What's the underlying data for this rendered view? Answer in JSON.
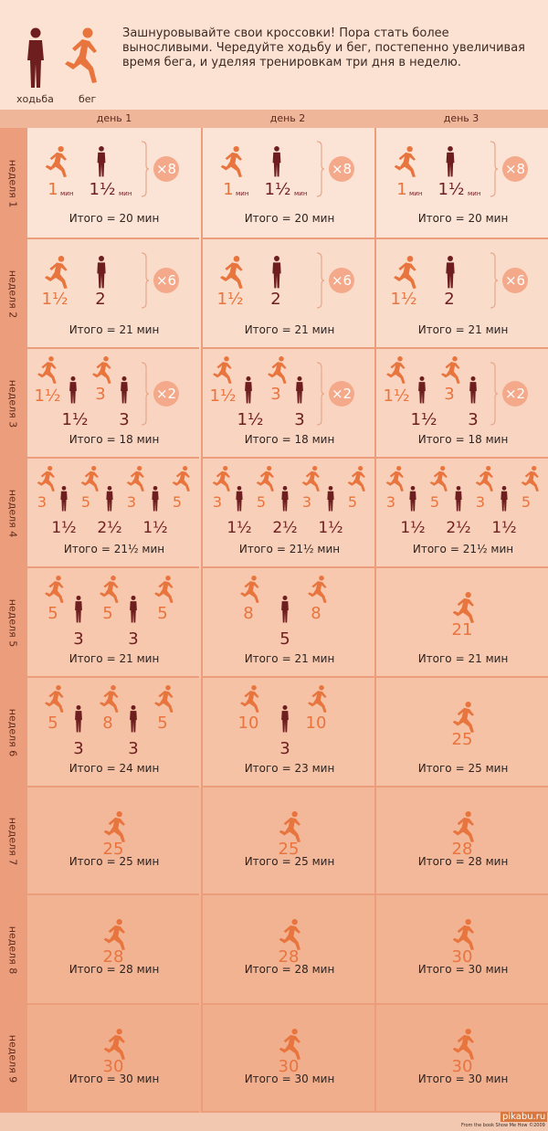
{
  "header": {
    "walk_label": "ходьба",
    "run_label": "бег",
    "intro": "Зашнуровывайте свои кроссовки! Пора стать более выносливыми. Чередуйте ходьбу и бег, постепенно увеличивая время бега, и уделяя тренировкам три дня в неделю."
  },
  "days": [
    "день 1",
    "день 2",
    "день 3"
  ],
  "total_prefix": "Итого",
  "colors": {
    "run": "#e8743e",
    "walk": "#6e1e1e",
    "accent_bg": "#f3a98a"
  },
  "weeks": [
    {
      "label": "неделя 1",
      "cells": [
        {
          "type": "w1",
          "run": "1",
          "walk": "1½",
          "unit": "мин",
          "reps": "×8",
          "total": "= 20 мин"
        },
        {
          "type": "w1",
          "run": "1",
          "walk": "1½",
          "unit": "мин",
          "reps": "×8",
          "total": "= 20 мин"
        },
        {
          "type": "w1",
          "run": "1",
          "walk": "1½",
          "unit": "мин",
          "reps": "×8",
          "total": "= 20 мин"
        }
      ]
    },
    {
      "label": "неделя 2",
      "cells": [
        {
          "type": "w2",
          "run": "1½",
          "walk": "2",
          "reps": "×6",
          "total": "= 21 мин"
        },
        {
          "type": "w2",
          "run": "1½",
          "walk": "2",
          "reps": "×6",
          "total": "= 21 мин"
        },
        {
          "type": "w2",
          "run": "1½",
          "walk": "2",
          "reps": "×6",
          "total": "= 21 мин"
        }
      ]
    },
    {
      "label": "неделя 3",
      "cells": [
        {
          "type": "w3",
          "vals": [
            "1½",
            "1½",
            "3",
            "3"
          ],
          "reps": "×2",
          "total": "= 18 мин"
        },
        {
          "type": "w3",
          "vals": [
            "1½",
            "1½",
            "3",
            "3"
          ],
          "reps": "×2",
          "total": "= 18 мин"
        },
        {
          "type": "w3",
          "vals": [
            "1½",
            "1½",
            "3",
            "3"
          ],
          "reps": "×2",
          "total": "= 18 мин"
        }
      ]
    },
    {
      "label": "неделя 4",
      "cells": [
        {
          "type": "w4",
          "vals": [
            "3",
            "1½",
            "5",
            "2½",
            "3",
            "1½",
            "5"
          ],
          "total": "= 21½ мин"
        },
        {
          "type": "w4",
          "vals": [
            "3",
            "1½",
            "5",
            "2½",
            "3",
            "1½",
            "5"
          ],
          "total": "= 21½ мин"
        },
        {
          "type": "w4",
          "vals": [
            "3",
            "1½",
            "5",
            "2½",
            "3",
            "1½",
            "5"
          ],
          "total": "= 21½ мин"
        }
      ]
    },
    {
      "label": "неделя 5",
      "cells": [
        {
          "type": "w5a",
          "vals": [
            "5",
            "3",
            "5",
            "3",
            "5"
          ],
          "total": "= 21 мин"
        },
        {
          "type": "w5b",
          "vals": [
            "8",
            "5",
            "8"
          ],
          "total": "= 21 мин"
        },
        {
          "type": "single",
          "vals": [
            "21"
          ],
          "total": "= 21 мин"
        }
      ]
    },
    {
      "label": "неделя 6",
      "cells": [
        {
          "type": "w5a",
          "vals": [
            "5",
            "3",
            "8",
            "3",
            "5"
          ],
          "total": "= 24 мин"
        },
        {
          "type": "w5b",
          "vals": [
            "10",
            "3",
            "10"
          ],
          "total": "= 23 мин"
        },
        {
          "type": "single",
          "vals": [
            "25"
          ],
          "total": "= 25 мин"
        }
      ]
    },
    {
      "label": "неделя 7",
      "cells": [
        {
          "type": "single",
          "vals": [
            "25"
          ],
          "total": "= 25 мин"
        },
        {
          "type": "single",
          "vals": [
            "25"
          ],
          "total": "= 25 мин"
        },
        {
          "type": "single",
          "vals": [
            "28"
          ],
          "total": "= 28 мин"
        }
      ]
    },
    {
      "label": "неделя 8",
      "cells": [
        {
          "type": "single",
          "vals": [
            "28"
          ],
          "total": "= 28 мин"
        },
        {
          "type": "single",
          "vals": [
            "28"
          ],
          "total": "= 28 мин"
        },
        {
          "type": "single",
          "vals": [
            "30"
          ],
          "total": "= 30 мин"
        }
      ]
    },
    {
      "label": "неделя 9",
      "cells": [
        {
          "type": "single",
          "vals": [
            "30"
          ],
          "total": "= 30 мин"
        },
        {
          "type": "single",
          "vals": [
            "30"
          ],
          "total": "= 30 мин"
        },
        {
          "type": "single",
          "vals": [
            "30"
          ],
          "total": "= 30 мин"
        }
      ]
    }
  ],
  "footer": {
    "source": "From the book Show Me How ©2009",
    "logo": "pikabu.ru"
  }
}
